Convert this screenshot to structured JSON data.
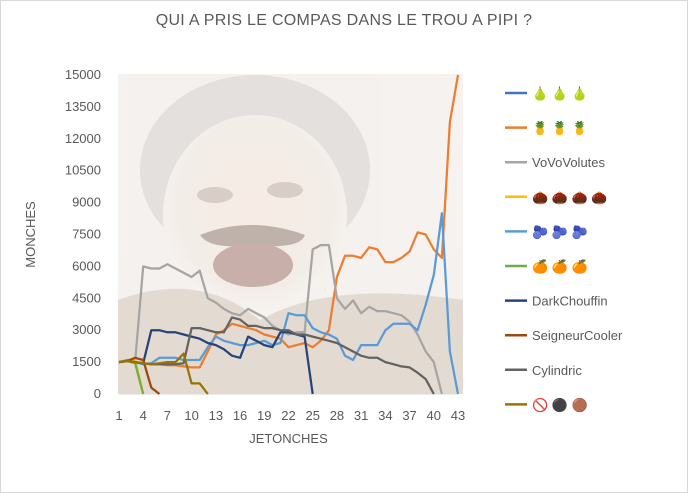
{
  "chart_data": {
    "type": "line",
    "title": "QUI A PRIS LE COMPAS DANS LE TROU A PIPI ?",
    "xlabel": "JETONCHES",
    "ylabel": "MONCHES",
    "xlim": [
      1,
      43
    ],
    "ylim": [
      0,
      15000
    ],
    "x_ticks": [
      1,
      4,
      7,
      10,
      13,
      16,
      19,
      22,
      25,
      28,
      31,
      34,
      37,
      40,
      43
    ],
    "y_ticks": [
      0,
      1500,
      3000,
      4500,
      6000,
      7500,
      9000,
      10500,
      12000,
      13500,
      15000
    ],
    "grid": false,
    "legend_position": "right",
    "series": [
      {
        "name": "🍐 🍐 🍐",
        "color": "#4472c4",
        "points": []
      },
      {
        "name": "🍍 🍍 🍍",
        "color": "#ed7d31",
        "points": [
          [
            1,
            1500
          ],
          [
            2,
            1600
          ],
          [
            3,
            1500
          ],
          [
            4,
            1450
          ],
          [
            5,
            1400
          ],
          [
            6,
            1400
          ],
          [
            7,
            1350
          ],
          [
            8,
            1350
          ],
          [
            9,
            1300
          ],
          [
            10,
            1250
          ],
          [
            11,
            1250
          ],
          [
            12,
            2000
          ],
          [
            13,
            2800
          ],
          [
            14,
            3000
          ],
          [
            15,
            3300
          ],
          [
            16,
            3200
          ],
          [
            17,
            3100
          ],
          [
            18,
            3000
          ],
          [
            19,
            2800
          ],
          [
            20,
            2700
          ],
          [
            21,
            2600
          ],
          [
            22,
            2200
          ],
          [
            23,
            2300
          ],
          [
            24,
            2400
          ],
          [
            25,
            2200
          ],
          [
            26,
            2500
          ],
          [
            27,
            3000
          ],
          [
            28,
            5500
          ],
          [
            29,
            6500
          ],
          [
            30,
            6500
          ],
          [
            31,
            6400
          ],
          [
            32,
            6900
          ],
          [
            33,
            6800
          ],
          [
            34,
            6200
          ],
          [
            35,
            6200
          ],
          [
            36,
            6400
          ],
          [
            37,
            6700
          ],
          [
            38,
            7600
          ],
          [
            39,
            7500
          ],
          [
            40,
            6800
          ],
          [
            41,
            6400
          ],
          [
            42,
            12800
          ],
          [
            43,
            15000
          ]
        ]
      },
      {
        "name": "VoVoVolutes",
        "color": "#a5a5a5",
        "points": [
          [
            1,
            1500
          ],
          [
            2,
            1550
          ],
          [
            3,
            1500
          ],
          [
            4,
            6000
          ],
          [
            5,
            5900
          ],
          [
            6,
            5900
          ],
          [
            7,
            6100
          ],
          [
            8,
            5900
          ],
          [
            9,
            5700
          ],
          [
            10,
            5500
          ],
          [
            11,
            5800
          ],
          [
            12,
            4500
          ],
          [
            13,
            4300
          ],
          [
            14,
            4000
          ],
          [
            15,
            3800
          ],
          [
            16,
            3700
          ],
          [
            17,
            4000
          ],
          [
            18,
            3800
          ],
          [
            19,
            3600
          ],
          [
            20,
            3200
          ],
          [
            21,
            3000
          ],
          [
            22,
            2800
          ],
          [
            23,
            2900
          ],
          [
            24,
            2900
          ],
          [
            25,
            6800
          ],
          [
            26,
            7000
          ],
          [
            27,
            7000
          ],
          [
            28,
            4500
          ],
          [
            29,
            4000
          ],
          [
            30,
            4400
          ],
          [
            31,
            3800
          ],
          [
            32,
            4100
          ],
          [
            33,
            3900
          ],
          [
            34,
            3900
          ],
          [
            35,
            3800
          ],
          [
            36,
            3700
          ],
          [
            37,
            3400
          ],
          [
            38,
            2800
          ],
          [
            39,
            2000
          ],
          [
            40,
            1500
          ],
          [
            41,
            0
          ]
        ]
      },
      {
        "name": "🌰 🌰 🌰 🌰",
        "color": "#ffc000",
        "points": [
          [
            1,
            1500
          ],
          [
            2,
            1550
          ],
          [
            3,
            1600
          ],
          [
            4,
            0
          ]
        ]
      },
      {
        "name": "🫐 🫐 🫐",
        "color": "#5b9bd5",
        "points": [
          [
            1,
            1500
          ],
          [
            2,
            1550
          ],
          [
            3,
            1500
          ],
          [
            4,
            1400
          ],
          [
            5,
            1450
          ],
          [
            6,
            1700
          ],
          [
            7,
            1700
          ],
          [
            8,
            1700
          ],
          [
            9,
            1600
          ],
          [
            10,
            1600
          ],
          [
            11,
            1600
          ],
          [
            12,
            2200
          ],
          [
            13,
            2700
          ],
          [
            14,
            2500
          ],
          [
            15,
            2400
          ],
          [
            16,
            2300
          ],
          [
            17,
            2300
          ],
          [
            18,
            2400
          ],
          [
            19,
            2500
          ],
          [
            20,
            2300
          ],
          [
            21,
            2400
          ],
          [
            22,
            3800
          ],
          [
            23,
            3700
          ],
          [
            24,
            3700
          ],
          [
            25,
            3100
          ],
          [
            26,
            2900
          ],
          [
            27,
            2800
          ],
          [
            28,
            2600
          ],
          [
            29,
            1800
          ],
          [
            30,
            1600
          ],
          [
            31,
            2300
          ],
          [
            32,
            2300
          ],
          [
            33,
            2300
          ],
          [
            34,
            3000
          ],
          [
            35,
            3300
          ],
          [
            36,
            3300
          ],
          [
            37,
            3300
          ],
          [
            38,
            3000
          ],
          [
            39,
            4200
          ],
          [
            40,
            5600
          ],
          [
            41,
            8500
          ],
          [
            42,
            2000
          ],
          [
            43,
            0
          ]
        ]
      },
      {
        "name": "🍊 🍊 🍊",
        "color": "#70ad47",
        "points": [
          [
            1,
            1500
          ],
          [
            2,
            1550
          ],
          [
            3,
            1450
          ],
          [
            4,
            0
          ]
        ]
      },
      {
        "name": "DarkChouffin",
        "color": "#264478",
        "points": [
          [
            1,
            1500
          ],
          [
            2,
            1550
          ],
          [
            3,
            1500
          ],
          [
            4,
            1450
          ],
          [
            5,
            3000
          ],
          [
            6,
            3000
          ],
          [
            7,
            2900
          ],
          [
            8,
            2900
          ],
          [
            9,
            2800
          ],
          [
            10,
            2700
          ],
          [
            11,
            2600
          ],
          [
            12,
            2400
          ],
          [
            13,
            2300
          ],
          [
            14,
            2100
          ],
          [
            15,
            1800
          ],
          [
            16,
            1700
          ],
          [
            17,
            2700
          ],
          [
            18,
            2500
          ],
          [
            19,
            2300
          ],
          [
            20,
            2200
          ],
          [
            21,
            2900
          ],
          [
            22,
            2900
          ],
          [
            23,
            2800
          ],
          [
            24,
            2700
          ],
          [
            25,
            0
          ]
        ]
      },
      {
        "name": "SeigneurCooler",
        "color": "#9e480e",
        "points": [
          [
            1,
            1500
          ],
          [
            2,
            1550
          ],
          [
            3,
            1700
          ],
          [
            4,
            1600
          ],
          [
            5,
            300
          ],
          [
            6,
            0
          ]
        ]
      },
      {
        "name": "Cylindric",
        "color": "#636363",
        "points": [
          [
            1,
            1500
          ],
          [
            2,
            1550
          ],
          [
            3,
            1500
          ],
          [
            4,
            1450
          ],
          [
            5,
            1400
          ],
          [
            6,
            1400
          ],
          [
            7,
            1400
          ],
          [
            8,
            1400
          ],
          [
            9,
            1450
          ],
          [
            10,
            3100
          ],
          [
            11,
            3100
          ],
          [
            12,
            3000
          ],
          [
            13,
            2900
          ],
          [
            14,
            2900
          ],
          [
            15,
            3600
          ],
          [
            16,
            3500
          ],
          [
            17,
            3200
          ],
          [
            18,
            3200
          ],
          [
            19,
            3100
          ],
          [
            20,
            3100
          ],
          [
            21,
            3000
          ],
          [
            22,
            3000
          ],
          [
            23,
            2800
          ],
          [
            24,
            2800
          ],
          [
            25,
            2700
          ],
          [
            26,
            2600
          ],
          [
            27,
            2500
          ],
          [
            28,
            2400
          ],
          [
            29,
            2200
          ],
          [
            30,
            2000
          ],
          [
            31,
            1800
          ],
          [
            32,
            1700
          ],
          [
            33,
            1700
          ],
          [
            34,
            1500
          ],
          [
            35,
            1400
          ],
          [
            36,
            1300
          ],
          [
            37,
            1250
          ],
          [
            38,
            1000
          ],
          [
            39,
            700
          ],
          [
            40,
            0
          ]
        ]
      },
      {
        "name": "🚫 ⚫ 🟤",
        "color": "#997300",
        "points": [
          [
            1,
            1500
          ],
          [
            2,
            1550
          ],
          [
            3,
            1500
          ],
          [
            4,
            1450
          ],
          [
            5,
            1400
          ],
          [
            6,
            1450
          ],
          [
            7,
            1500
          ],
          [
            8,
            1500
          ],
          [
            9,
            1900
          ],
          [
            10,
            500
          ],
          [
            11,
            500
          ],
          [
            12,
            0
          ]
        ]
      }
    ]
  }
}
